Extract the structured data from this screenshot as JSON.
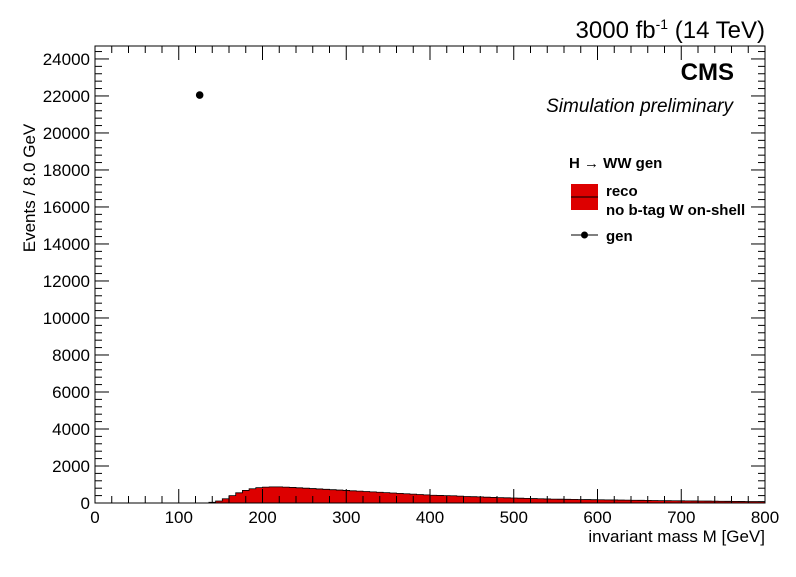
{
  "header": {
    "lumi_value": "3000 fb",
    "lumi_exponent": "-1",
    "lumi_energy": " (14 TeV)",
    "experiment": "CMS",
    "status": "Simulation preliminary"
  },
  "legend": {
    "header": "H  → WW gen",
    "reco_line1": "reco",
    "reco_line2": "no b-tag W on-shell",
    "gen": "gen"
  },
  "chart_data": {
    "type": "histogram",
    "xlabel": "invariant mass M [GeV]",
    "ylabel": "Events / 8.0 GeV",
    "xlim": [
      0,
      800
    ],
    "ylim": [
      0,
      24700
    ],
    "bin_width": 8,
    "x_ticks": [
      0,
      100,
      200,
      300,
      400,
      500,
      600,
      700,
      800
    ],
    "y_ticks": [
      0,
      2000,
      4000,
      6000,
      8000,
      10000,
      12000,
      14000,
      16000,
      18000,
      20000,
      22000,
      24000
    ],
    "grid": false,
    "legend_position": "top-right",
    "series": [
      {
        "name": "reco",
        "style": "filled-histogram",
        "color": "#dd0000",
        "bin_low_edges": [
          136,
          144,
          152,
          160,
          168,
          176,
          184,
          192,
          200,
          208,
          216,
          224,
          232,
          240,
          248,
          256,
          264,
          272,
          280,
          288,
          296,
          304,
          312,
          320,
          328,
          336,
          344,
          352,
          360,
          368,
          376,
          384,
          392,
          400,
          408,
          416,
          424,
          432,
          440,
          448,
          456,
          464,
          472,
          480,
          488,
          496,
          504,
          512,
          520,
          528,
          536,
          544,
          552,
          560,
          568,
          576,
          584,
          592,
          600,
          608,
          616,
          624,
          632,
          640,
          648,
          656,
          664,
          672,
          680,
          688,
          696,
          704,
          712,
          720,
          728,
          736,
          744,
          752,
          760,
          768,
          776,
          784,
          792
        ],
        "values": [
          40,
          110,
          230,
          400,
          550,
          680,
          770,
          830,
          860,
          870,
          870,
          860,
          840,
          820,
          800,
          780,
          760,
          740,
          720,
          700,
          680,
          660,
          640,
          620,
          600,
          580,
          560,
          540,
          520,
          500,
          480,
          460,
          440,
          420,
          410,
          400,
          390,
          370,
          350,
          340,
          330,
          315,
          300,
          290,
          280,
          270,
          260,
          250,
          240,
          230,
          220,
          210,
          205,
          200,
          195,
          190,
          185,
          180,
          175,
          170,
          165,
          160,
          155,
          150,
          145,
          140,
          135,
          130,
          125,
          120,
          118,
          115,
          112,
          108,
          105,
          100,
          95,
          92,
          88,
          85,
          82,
          80,
          78
        ]
      },
      {
        "name": "gen",
        "style": "markers",
        "color": "#000000",
        "points": [
          {
            "x": 125,
            "y": 22050
          }
        ]
      }
    ]
  }
}
